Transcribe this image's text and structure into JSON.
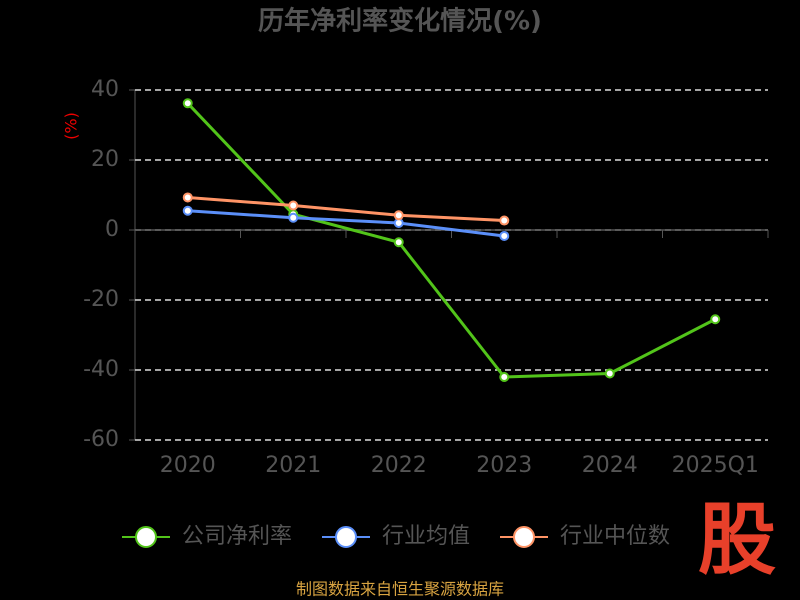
{
  "chart_data": {
    "type": "line",
    "title": "历年净利率变化情况(%)",
    "y_label": "(%)",
    "categories": [
      "2020",
      "2021",
      "2022",
      "2023",
      "2024",
      "2025Q1"
    ],
    "series": [
      {
        "name": "公司净利率",
        "color": "#52c41a",
        "values": [
          36.2,
          4.5,
          -3.5,
          -42,
          -41,
          -25.5
        ]
      },
      {
        "name": "行业均值",
        "color": "#5b8ff9",
        "values": [
          5.5,
          3.5,
          2,
          -1.7,
          null,
          null
        ]
      },
      {
        "name": "行业中位数",
        "color": "#ff9466",
        "values": [
          9.3,
          7,
          4.2,
          2.7,
          null,
          null
        ]
      }
    ],
    "ylim": [
      -60,
      40
    ],
    "yticks": [
      -60,
      -40,
      -20,
      0,
      20,
      40
    ],
    "grid": true,
    "source": "制图数据来自恒生聚源数据库",
    "logo": "股"
  }
}
